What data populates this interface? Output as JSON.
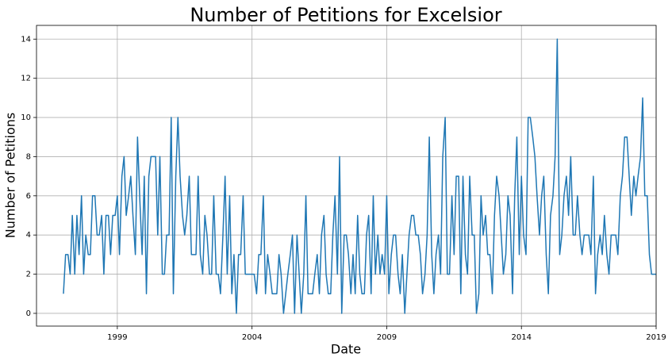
{
  "chart_data": {
    "type": "line",
    "title": "Number of Petitions for Excelsior",
    "x_label": "Date",
    "y_label": "Number of Petitions",
    "color": "#1f77b4",
    "grid": true,
    "xlim": [
      1996.0,
      2019.0
    ],
    "xticks": [
      1999,
      2004,
      2009,
      2014,
      2019
    ],
    "ylim": [
      -0.65,
      14.7
    ],
    "yticks": [
      0,
      2,
      4,
      6,
      8,
      10,
      12,
      14
    ],
    "x": [
      1997,
      1997.08,
      1997.17,
      1997.25,
      1997.33,
      1997.42,
      1997.5,
      1997.58,
      1997.67,
      1997.75,
      1997.83,
      1997.92,
      1998,
      1998.08,
      1998.17,
      1998.25,
      1998.33,
      1998.42,
      1998.5,
      1998.58,
      1998.67,
      1998.75,
      1998.83,
      1998.92,
      1999,
      1999.08,
      1999.17,
      1999.25,
      1999.33,
      1999.42,
      1999.5,
      1999.58,
      1999.67,
      1999.75,
      1999.83,
      1999.92,
      2000,
      2000.08,
      2000.17,
      2000.25,
      2000.33,
      2000.42,
      2000.5,
      2000.58,
      2000.67,
      2000.75,
      2000.83,
      2000.92,
      2001,
      2001.08,
      2001.17,
      2001.25,
      2001.33,
      2001.42,
      2001.5,
      2001.58,
      2001.67,
      2001.75,
      2001.83,
      2001.92,
      2002,
      2002.08,
      2002.17,
      2002.25,
      2002.33,
      2002.42,
      2002.5,
      2002.58,
      2002.67,
      2002.75,
      2002.83,
      2002.92,
      2003,
      2003.08,
      2003.17,
      2003.25,
      2003.33,
      2003.42,
      2003.5,
      2003.58,
      2003.67,
      2003.75,
      2003.83,
      2003.92,
      2004,
      2004.08,
      2004.17,
      2004.25,
      2004.33,
      2004.42,
      2004.5,
      2004.58,
      2004.67,
      2004.75,
      2004.83,
      2004.92,
      2005,
      2005.08,
      2005.17,
      2005.25,
      2005.33,
      2005.42,
      2005.5,
      2005.58,
      2005.67,
      2005.75,
      2005.83,
      2005.92,
      2006,
      2006.08,
      2006.17,
      2006.25,
      2006.33,
      2006.42,
      2006.5,
      2006.58,
      2006.67,
      2006.75,
      2006.83,
      2006.92,
      2007,
      2007.08,
      2007.17,
      2007.25,
      2007.33,
      2007.42,
      2007.5,
      2007.58,
      2007.67,
      2007.75,
      2007.83,
      2007.92,
      2008,
      2008.08,
      2008.17,
      2008.25,
      2008.33,
      2008.42,
      2008.5,
      2008.58,
      2008.67,
      2008.75,
      2008.83,
      2008.92,
      2009,
      2009.08,
      2009.17,
      2009.25,
      2009.33,
      2009.42,
      2009.5,
      2009.58,
      2009.67,
      2009.75,
      2009.83,
      2009.92,
      2010,
      2010.08,
      2010.17,
      2010.25,
      2010.33,
      2010.42,
      2010.5,
      2010.58,
      2010.67,
      2010.75,
      2010.83,
      2010.92,
      2011,
      2011.08,
      2011.17,
      2011.25,
      2011.33,
      2011.42,
      2011.5,
      2011.58,
      2011.67,
      2011.75,
      2011.83,
      2011.92,
      2012,
      2012.08,
      2012.17,
      2012.25,
      2012.33,
      2012.42,
      2012.5,
      2012.58,
      2012.67,
      2012.75,
      2012.83,
      2012.92,
      2013,
      2013.08,
      2013.17,
      2013.25,
      2013.33,
      2013.42,
      2013.5,
      2013.58,
      2013.67,
      2013.75,
      2013.83,
      2013.92,
      2014,
      2014.08,
      2014.17,
      2014.25,
      2014.33,
      2014.42,
      2014.5,
      2014.58,
      2014.67,
      2014.75,
      2014.83,
      2014.92,
      2015,
      2015.08,
      2015.17,
      2015.25,
      2015.33,
      2015.42,
      2015.5,
      2015.58,
      2015.67,
      2015.75,
      2015.83,
      2015.92,
      2016,
      2016.08,
      2016.17,
      2016.25,
      2016.33,
      2016.42,
      2016.5,
      2016.58,
      2016.67,
      2016.75,
      2016.83,
      2016.92,
      2017,
      2017.08,
      2017.17,
      2017.25,
      2017.33,
      2017.42,
      2017.5,
      2017.58,
      2017.67,
      2017.75,
      2017.83,
      2017.92,
      2018,
      2018.08,
      2018.17,
      2018.25,
      2018.33,
      2018.42,
      2018.5,
      2018.58,
      2018.67,
      2018.75,
      2018.83,
      2018.92,
      2019
    ],
    "values": [
      1,
      3,
      3,
      2,
      5,
      2,
      5,
      3,
      6,
      2,
      4,
      3,
      3,
      6,
      6,
      4,
      4,
      5,
      2,
      5,
      5,
      3,
      5,
      5,
      6,
      3,
      7,
      8,
      5,
      6,
      7,
      5,
      3,
      9,
      6,
      3,
      7,
      1,
      7,
      8,
      8,
      8,
      4,
      8,
      2,
      2,
      4,
      4,
      10,
      1,
      7,
      10,
      7,
      5,
      4,
      5,
      7,
      3,
      3,
      3,
      7,
      3,
      2,
      5,
      4,
      2,
      2,
      6,
      2,
      2,
      1,
      4,
      7,
      2,
      6,
      1,
      3,
      0,
      3,
      3,
      6,
      2,
      2,
      2,
      2,
      2,
      1,
      3,
      3,
      6,
      1,
      3,
      2,
      1,
      1,
      1,
      3,
      2,
      0,
      1,
      2,
      3,
      4,
      0,
      4,
      2,
      0,
      2,
      6,
      1,
      1,
      1,
      2,
      3,
      1,
      4,
      5,
      2,
      1,
      1,
      4,
      6,
      2,
      8,
      0,
      4,
      4,
      3,
      1,
      3,
      1,
      5,
      2,
      1,
      1,
      4,
      5,
      1,
      6,
      2,
      4,
      2,
      3,
      2,
      6,
      1,
      3,
      4,
      4,
      2,
      1,
      3,
      0,
      2,
      4,
      5,
      5,
      4,
      4,
      3,
      1,
      2,
      4,
      9,
      3,
      1,
      3,
      4,
      2,
      8,
      10,
      2,
      2,
      6,
      3,
      7,
      7,
      1,
      7,
      3,
      2,
      7,
      4,
      4,
      0,
      1,
      6,
      4,
      5,
      3,
      3,
      1,
      5,
      7,
      6,
      4,
      2,
      3,
      6,
      5,
      1,
      6,
      9,
      3,
      7,
      4,
      3,
      10,
      10,
      9,
      8,
      6,
      4,
      6,
      7,
      3,
      1,
      5,
      6,
      8,
      14,
      3,
      4,
      6,
      7,
      5,
      8,
      4,
      4,
      6,
      4,
      3,
      4,
      4,
      4,
      3,
      7,
      1,
      3,
      4,
      3,
      5,
      3,
      2,
      4,
      4,
      4,
      3,
      6,
      7,
      9,
      9,
      7,
      5,
      7,
      6,
      7,
      8,
      11,
      6,
      6,
      3,
      2,
      2,
      2
    ]
  }
}
